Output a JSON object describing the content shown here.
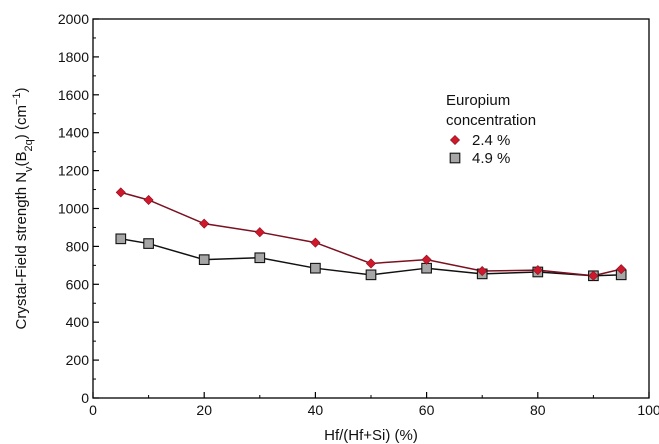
{
  "chart_data": {
    "type": "line",
    "xlabel": "Hf/(Hf+Si) (%)",
    "ylabel_parts": {
      "prefix": "Crystal-Field strength N",
      "sub_v": "v",
      "mid": "(B",
      "sub_2q": "2q",
      "suffix": ") (cm",
      "sup": "−1",
      "end": ")"
    },
    "xlim": [
      0,
      100
    ],
    "ylim": [
      0,
      2000
    ],
    "x_ticks": [
      0,
      20,
      40,
      60,
      80,
      100
    ],
    "y_ticks": [
      0,
      200,
      400,
      600,
      800,
      1000,
      1200,
      1400,
      1600,
      1800,
      2000
    ],
    "x_tick_labels": [
      "0",
      "20",
      "40",
      "60",
      "80",
      "100"
    ],
    "y_tick_labels": [
      "0",
      "200",
      "400",
      "600",
      "800",
      "1000",
      "1200",
      "1400",
      "1600",
      "1800",
      "2000"
    ],
    "grid": false,
    "legend": {
      "title_line1": "Europium",
      "title_line2": "concentration",
      "placement": "upper-right"
    },
    "x": [
      5,
      10,
      20,
      30,
      40,
      50,
      60,
      70,
      80,
      90,
      95
    ],
    "series": [
      {
        "name": "2.4 %",
        "marker": "diamond",
        "color": "#d0182c",
        "line_color": "#7a1020",
        "values": [
          1085,
          1045,
          920,
          875,
          820,
          710,
          730,
          670,
          675,
          645,
          680
        ]
      },
      {
        "name": "4.9 %",
        "marker": "square",
        "color": "#a6a6a6",
        "line_color": "#111111",
        "values": [
          840,
          815,
          730,
          740,
          685,
          650,
          685,
          655,
          665,
          645,
          650
        ]
      }
    ]
  }
}
